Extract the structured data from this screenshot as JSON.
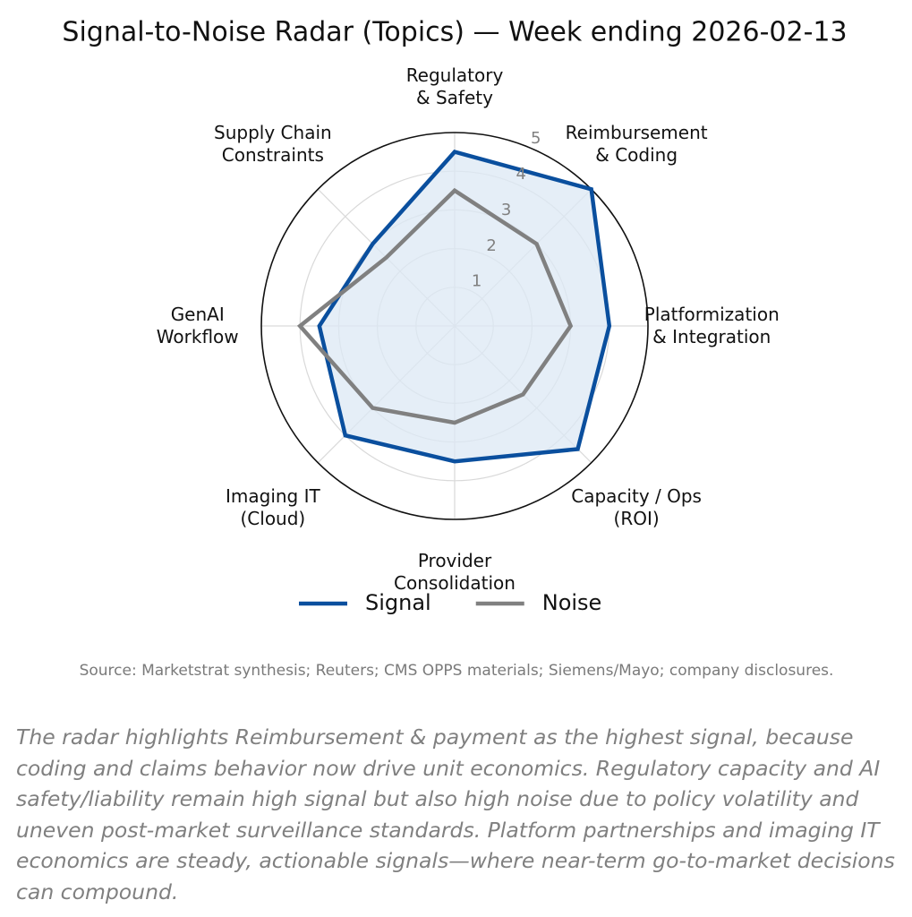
{
  "chart_data": {
    "type": "radar",
    "title": "Signal-to-Noise Radar (Topics) — Week ending 2026-02-13",
    "categories": [
      "Regulatory\n& Safety",
      "Reimbursement\n& Coding",
      "Platformization\n& Integration",
      "Capacity / Ops\n(ROI)",
      "Provider\nConsolidation",
      "Imaging IT\n(Cloud)",
      "GenAI\nWorkflow",
      "Supply Chain\nConstraints"
    ],
    "series": [
      {
        "name": "Signal",
        "color": "#0a4f9e",
        "fill": "#dce8f4",
        "values": [
          4.5,
          5.0,
          4.0,
          4.5,
          3.5,
          4.0,
          3.5,
          3.0
        ]
      },
      {
        "name": "Noise",
        "color": "#808080",
        "values": [
          3.5,
          3.0,
          3.0,
          2.5,
          2.5,
          3.0,
          4.0,
          2.5
        ]
      }
    ],
    "rlim": [
      0,
      5
    ],
    "rticks": [
      1,
      2,
      3,
      4,
      5
    ],
    "grid": true,
    "legend": "bottom",
    "source": "Source: Marketstrat synthesis; Reuters; CMS OPPS materials; Siemens/Mayo; company disclosures.",
    "caption": "The radar highlights Reimbursement & payment as the highest signal, because coding and claims behavior now drive unit economics. Regulatory capacity and AI safety/liability remain high signal but also high noise due to policy volatility and uneven post-market surveillance standards. Platform partnerships and imaging IT economics are steady, actionable signals—where near-term go-to-market decisions can compound."
  }
}
